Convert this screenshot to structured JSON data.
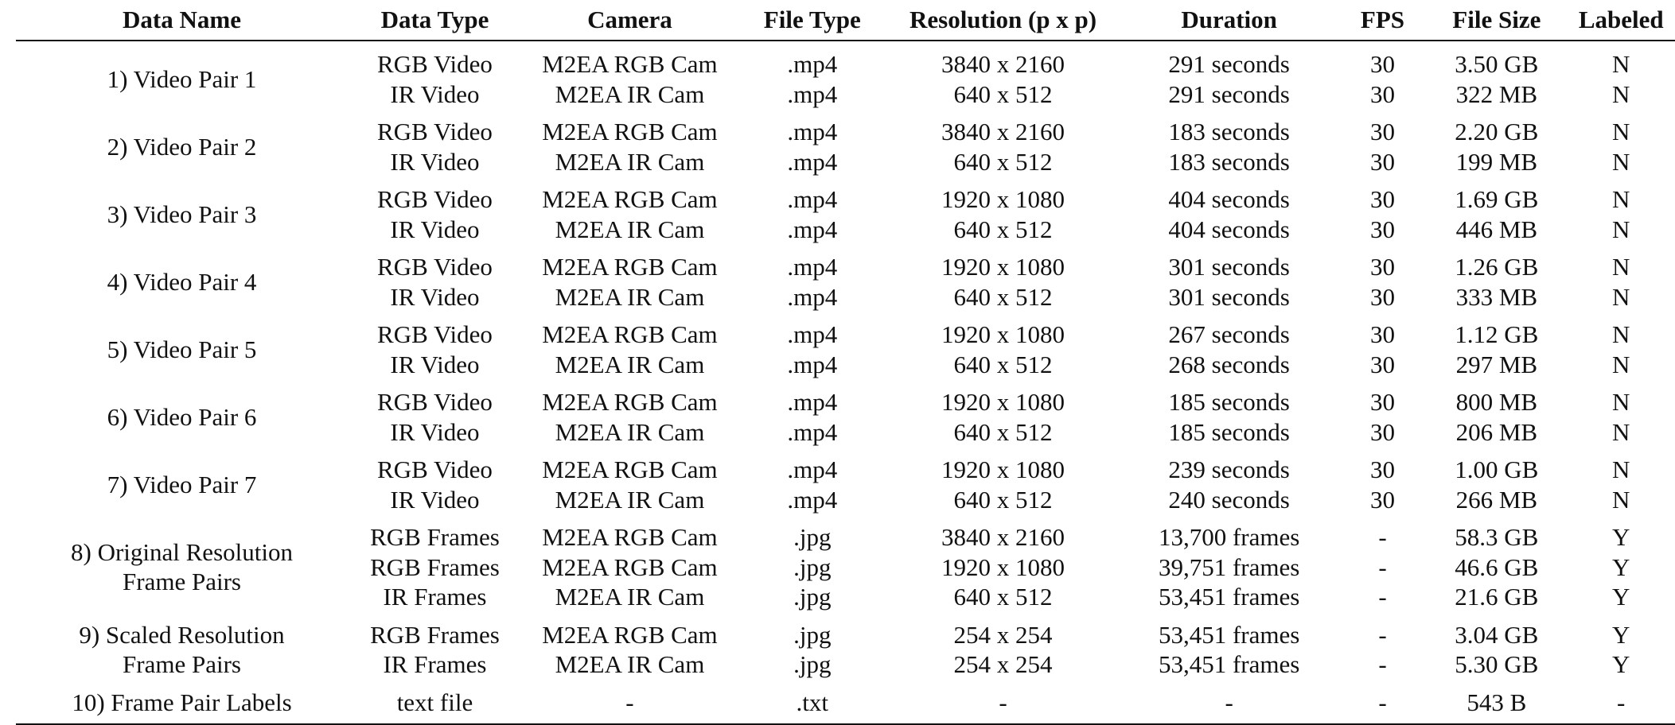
{
  "table": {
    "headers": [
      "Data Name",
      "Data Type",
      "Camera",
      "File Type",
      "Resolution (p x p)",
      "Duration",
      "FPS",
      "File Size",
      "Labeled"
    ],
    "groups": [
      {
        "name": [
          "1) Video Pair 1"
        ],
        "rows": [
          [
            "RGB Video",
            "M2EA RGB Cam",
            ".mp4",
            "3840 x 2160",
            "291 seconds",
            "30",
            "3.50 GB",
            "N"
          ],
          [
            "IR Video",
            "M2EA IR Cam",
            ".mp4",
            "640 x 512",
            "291 seconds",
            "30",
            "322 MB",
            "N"
          ]
        ]
      },
      {
        "name": [
          "2) Video Pair 2"
        ],
        "rows": [
          [
            "RGB Video",
            "M2EA RGB Cam",
            ".mp4",
            "3840 x 2160",
            "183 seconds",
            "30",
            "2.20 GB",
            "N"
          ],
          [
            "IR Video",
            "M2EA IR Cam",
            ".mp4",
            "640 x 512",
            "183 seconds",
            "30",
            "199 MB",
            "N"
          ]
        ]
      },
      {
        "name": [
          "3) Video Pair 3"
        ],
        "rows": [
          [
            "RGB Video",
            "M2EA RGB Cam",
            ".mp4",
            "1920 x 1080",
            "404 seconds",
            "30",
            "1.69 GB",
            "N"
          ],
          [
            "IR Video",
            "M2EA IR Cam",
            ".mp4",
            "640 x 512",
            "404 seconds",
            "30",
            "446 MB",
            "N"
          ]
        ]
      },
      {
        "name": [
          "4) Video Pair 4"
        ],
        "rows": [
          [
            "RGB Video",
            "M2EA RGB Cam",
            ".mp4",
            "1920 x 1080",
            "301 seconds",
            "30",
            "1.26 GB",
            "N"
          ],
          [
            "IR Video",
            "M2EA IR Cam",
            ".mp4",
            "640 x 512",
            "301 seconds",
            "30",
            "333 MB",
            "N"
          ]
        ]
      },
      {
        "name": [
          "5) Video Pair 5"
        ],
        "rows": [
          [
            "RGB Video",
            "M2EA RGB Cam",
            ".mp4",
            "1920 x 1080",
            "267 seconds",
            "30",
            "1.12 GB",
            "N"
          ],
          [
            "IR Video",
            "M2EA IR Cam",
            ".mp4",
            "640 x 512",
            "268 seconds",
            "30",
            "297 MB",
            "N"
          ]
        ]
      },
      {
        "name": [
          "6) Video Pair 6"
        ],
        "rows": [
          [
            "RGB Video",
            "M2EA RGB Cam",
            ".mp4",
            "1920 x 1080",
            "185 seconds",
            "30",
            "800 MB",
            "N"
          ],
          [
            "IR Video",
            "M2EA IR Cam",
            ".mp4",
            "640 x 512",
            "185 seconds",
            "30",
            "206 MB",
            "N"
          ]
        ]
      },
      {
        "name": [
          "7) Video Pair 7"
        ],
        "rows": [
          [
            "RGB Video",
            "M2EA RGB Cam",
            ".mp4",
            "1920 x 1080",
            "239 seconds",
            "30",
            "1.00 GB",
            "N"
          ],
          [
            "IR Video",
            "M2EA IR Cam",
            ".mp4",
            "640 x 512",
            "240 seconds",
            "30",
            "266 MB",
            "N"
          ]
        ]
      },
      {
        "name": [
          "8) Original Resolution",
          "Frame Pairs"
        ],
        "rows": [
          [
            "RGB Frames",
            "M2EA RGB Cam",
            ".jpg",
            "3840 x 2160",
            "13,700 frames",
            "-",
            "58.3 GB",
            "Y"
          ],
          [
            "RGB Frames",
            "M2EA RGB Cam",
            ".jpg",
            "1920 x 1080",
            "39,751 frames",
            "-",
            "46.6 GB",
            "Y"
          ],
          [
            "IR Frames",
            "M2EA IR Cam",
            ".jpg",
            "640 x 512",
            "53,451 frames",
            "-",
            "21.6 GB",
            "Y"
          ]
        ]
      },
      {
        "name": [
          "9) Scaled Resolution",
          "Frame Pairs"
        ],
        "rows": [
          [
            "RGB Frames",
            "M2EA RGB Cam",
            ".jpg",
            "254 x 254",
            "53,451 frames",
            "-",
            "3.04 GB",
            "Y"
          ],
          [
            "IR Frames",
            "M2EA IR Cam",
            ".jpg",
            "254 x 254",
            "53,451 frames",
            "-",
            "5.30 GB",
            "Y"
          ]
        ]
      },
      {
        "name": [
          "10) Frame Pair Labels"
        ],
        "rows": [
          [
            "text file",
            "-",
            ".txt",
            "-",
            "-",
            "-",
            "543 B",
            "-"
          ]
        ]
      }
    ]
  }
}
